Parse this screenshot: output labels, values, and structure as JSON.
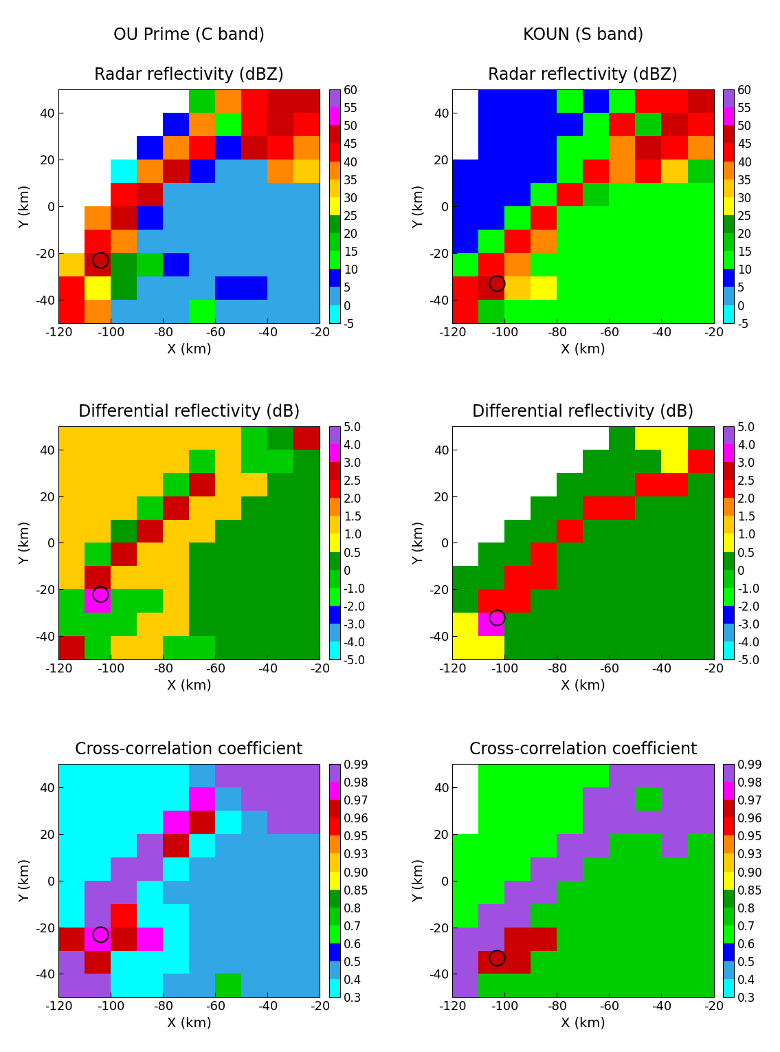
{
  "chart_data": [
    {
      "type": "heatmap",
      "subtitle": "OU Prime (C band)",
      "title": "Radar reflectivity (dBZ)",
      "x_label": "X (km)",
      "y_label": "Y (km)",
      "xlim": [
        -120,
        -20
      ],
      "ylim": [
        -50,
        50
      ],
      "xticks": [
        -120,
        -100,
        -80,
        -60,
        -40,
        -20
      ],
      "yticks": [
        -40,
        -20,
        0,
        20,
        40
      ],
      "x_edges": [
        -120,
        -110,
        -100,
        -90,
        -80,
        -70,
        -60,
        -50,
        -40,
        -30,
        -20
      ],
      "y_edges": [
        50,
        40,
        30,
        20,
        10,
        0,
        -10,
        -20,
        -30,
        -40,
        -50
      ],
      "cells": [
        [
          null,
          null,
          null,
          null,
          null,
          15,
          35,
          40,
          45,
          45
        ],
        [
          null,
          null,
          null,
          null,
          5,
          35,
          10,
          40,
          45,
          40
        ],
        [
          null,
          null,
          null,
          5,
          35,
          40,
          5,
          45,
          40,
          35
        ],
        [
          null,
          null,
          -5,
          35,
          45,
          5,
          2,
          2,
          35,
          30
        ],
        [
          null,
          null,
          40,
          45,
          2,
          2,
          2,
          2,
          2,
          2
        ],
        [
          null,
          35,
          45,
          5,
          2,
          2,
          2,
          2,
          2,
          2
        ],
        [
          null,
          40,
          35,
          2,
          2,
          2,
          2,
          2,
          2,
          2
        ],
        [
          30,
          45,
          20,
          15,
          5,
          2,
          2,
          2,
          2,
          2
        ],
        [
          40,
          25,
          20,
          2,
          2,
          2,
          5,
          5,
          2,
          2
        ],
        [
          40,
          35,
          2,
          2,
          2,
          10,
          2,
          2,
          2,
          2
        ]
      ],
      "colorbar_range": [
        -5,
        60
      ],
      "colorbar_ticks": [
        -5,
        0,
        5,
        10,
        15,
        20,
        25,
        30,
        35,
        40,
        45,
        50,
        55,
        60
      ],
      "colors": [
        "#00ffff",
        "#33a6e6",
        "#0000ff",
        "#00ff00",
        "#00cc00",
        "#009900",
        "#ffff00",
        "#ffcc00",
        "#ff8800",
        "#ff0000",
        "#cc0000",
        "#ff00ff",
        "#a050e0"
      ],
      "circle": {
        "x": -104,
        "y": -23
      }
    },
    {
      "type": "heatmap",
      "subtitle": "KOUN (S band)",
      "title": "Radar reflectivity (dBZ)",
      "x_label": "X (km)",
      "y_label": "Y (km)",
      "xlim": [
        -120,
        -20
      ],
      "ylim": [
        -50,
        50
      ],
      "xticks": [
        -120,
        -100,
        -80,
        -60,
        -40,
        -20
      ],
      "yticks": [
        -40,
        -20,
        0,
        20,
        40
      ],
      "x_edges": [
        -120,
        -110,
        -100,
        -90,
        -80,
        -70,
        -60,
        -50,
        -40,
        -30,
        -20
      ],
      "y_edges": [
        50,
        40,
        30,
        20,
        10,
        0,
        -10,
        -20,
        -30,
        -40,
        -50
      ],
      "cells": [
        [
          null,
          5,
          5,
          5,
          10,
          5,
          10,
          40,
          40,
          45
        ],
        [
          null,
          5,
          5,
          5,
          5,
          10,
          40,
          15,
          45,
          40
        ],
        [
          null,
          5,
          5,
          5,
          10,
          10,
          35,
          45,
          40,
          35
        ],
        [
          5,
          5,
          5,
          5,
          10,
          40,
          35,
          40,
          30,
          15
        ],
        [
          5,
          5,
          5,
          10,
          40,
          15,
          12,
          12,
          12,
          12
        ],
        [
          5,
          5,
          10,
          40,
          12,
          12,
          12,
          12,
          12,
          12
        ],
        [
          5,
          10,
          40,
          35,
          12,
          12,
          12,
          12,
          12,
          12
        ],
        [
          10,
          40,
          35,
          12,
          12,
          12,
          12,
          12,
          12,
          12
        ],
        [
          40,
          45,
          30,
          25,
          12,
          12,
          12,
          12,
          12,
          12
        ],
        [
          40,
          15,
          12,
          12,
          12,
          12,
          12,
          12,
          12,
          12
        ]
      ],
      "colorbar_range": [
        -5,
        60
      ],
      "colorbar_ticks": [
        -5,
        0,
        5,
        10,
        15,
        20,
        25,
        30,
        35,
        40,
        45,
        50,
        55,
        60
      ],
      "colors": [
        "#00ffff",
        "#33a6e6",
        "#0000ff",
        "#00ff00",
        "#00cc00",
        "#009900",
        "#ffff00",
        "#ffcc00",
        "#ff8800",
        "#ff0000",
        "#cc0000",
        "#ff00ff",
        "#a050e0"
      ],
      "circle": {
        "x": -103,
        "y": -33
      }
    },
    {
      "type": "heatmap",
      "title": "Differential reflectivity (dB)",
      "x_label": "X (km)",
      "y_label": "Y (km)",
      "xlim": [
        -120,
        -20
      ],
      "ylim": [
        -50,
        50
      ],
      "xticks": [
        -120,
        -100,
        -80,
        -60,
        -40,
        -20
      ],
      "yticks": [
        -40,
        -20,
        0,
        20,
        40
      ],
      "x_edges": [
        -120,
        -110,
        -100,
        -90,
        -80,
        -70,
        -60,
        -50,
        -40,
        -30,
        -20
      ],
      "y_edges": [
        50,
        40,
        30,
        20,
        10,
        0,
        -10,
        -20,
        -30,
        -40,
        -50
      ],
      "cells": [
        [
          1.2,
          1.2,
          1.2,
          1.2,
          1.2,
          1.2,
          1.2,
          -0.5,
          0.2,
          2.5
        ],
        [
          1.2,
          1.2,
          1.2,
          1.2,
          1.2,
          -0.5,
          1.2,
          -0.5,
          -0.5,
          0.2
        ],
        [
          1.2,
          1.2,
          1.2,
          1.2,
          -0.5,
          2.5,
          1.2,
          1.2,
          0.2,
          0.2
        ],
        [
          1.2,
          1.2,
          1.2,
          -0.5,
          2.5,
          1.2,
          1.2,
          0.2,
          0.2,
          0.2
        ],
        [
          1.2,
          1.2,
          0.2,
          2.5,
          1.2,
          1.2,
          0.2,
          0.2,
          0.2,
          0.2
        ],
        [
          1.2,
          -0.5,
          2.5,
          1.2,
          1.2,
          0.2,
          0.2,
          0.2,
          0.2,
          0.2
        ],
        [
          1.2,
          2.5,
          1.2,
          1.2,
          1.2,
          0.2,
          0.2,
          0.2,
          0.2,
          0.2
        ],
        [
          -0.5,
          3.5,
          -0.5,
          -0.5,
          1.2,
          0.2,
          0.2,
          0.2,
          0.2,
          0.2
        ],
        [
          -0.5,
          -0.5,
          -0.5,
          1.2,
          1.2,
          0.2,
          0.2,
          0.2,
          0.2,
          0.2
        ],
        [
          2.5,
          -0.5,
          1.2,
          1.2,
          -0.5,
          -0.5,
          0.2,
          0.2,
          0.2,
          0.2
        ]
      ],
      "colorbar_range": [
        -5,
        5
      ],
      "colorbar_ticks": [
        {
          "value": -5,
          "label": "-5.0"
        },
        {
          "value": -4,
          "label": "-4.0"
        },
        {
          "value": -3,
          "label": "-3.0"
        },
        {
          "value": -2,
          "label": "-2.0"
        },
        {
          "value": -1,
          "label": "-1.0"
        },
        0,
        0.5,
        {
          "value": 1,
          "label": "1.0"
        },
        1.5,
        {
          "value": 2,
          "label": "2.0"
        },
        2.5,
        {
          "value": 3,
          "label": "3.0"
        },
        {
          "value": 4,
          "label": "4.0"
        },
        {
          "value": 5,
          "label": "5.0"
        }
      ],
      "colors": [
        "#00ffff",
        "#33a6e6",
        "#0000ff",
        "#00ff00",
        "#00cc00",
        "#009900",
        "#ffff00",
        "#ffcc00",
        "#ff8800",
        "#ff0000",
        "#cc0000",
        "#ff00ff",
        "#a050e0"
      ],
      "circle": {
        "x": -104,
        "y": -22
      }
    },
    {
      "type": "heatmap",
      "title": "Differential reflectivity (dB)",
      "x_label": "X (km)",
      "y_label": "Y (km)",
      "xlim": [
        -120,
        -20
      ],
      "ylim": [
        -50,
        50
      ],
      "xticks": [
        -120,
        -100,
        -80,
        -60,
        -40,
        -20
      ],
      "yticks": [
        -40,
        -20,
        0,
        20,
        40
      ],
      "x_edges": [
        -120,
        -110,
        -100,
        -90,
        -80,
        -70,
        -60,
        -50,
        -40,
        -30,
        -20
      ],
      "y_edges": [
        50,
        40,
        30,
        20,
        10,
        0,
        -10,
        -20,
        -30,
        -40,
        -50
      ],
      "cells": [
        [
          null,
          null,
          null,
          null,
          null,
          null,
          0.3,
          0.7,
          0.7,
          0.3
        ],
        [
          null,
          null,
          null,
          null,
          null,
          0.3,
          0.3,
          0.3,
          0.7,
          2.2
        ],
        [
          null,
          null,
          null,
          null,
          0.3,
          0.3,
          0.3,
          2.2,
          2.2,
          0.3
        ],
        [
          null,
          null,
          null,
          0.3,
          0.3,
          2.2,
          2.2,
          0.3,
          0.3,
          0.3
        ],
        [
          null,
          null,
          0.3,
          0.3,
          2.2,
          0.3,
          0.3,
          0.3,
          0.3,
          0.3
        ],
        [
          null,
          0.3,
          0.3,
          2.2,
          0.3,
          0.3,
          0.3,
          0.3,
          0.3,
          0.3
        ],
        [
          0.3,
          0.3,
          2.2,
          2.2,
          0.3,
          0.3,
          0.3,
          0.3,
          0.3,
          0.3
        ],
        [
          0.3,
          2.2,
          2.2,
          0.3,
          0.3,
          0.3,
          0.3,
          0.3,
          0.3,
          0.3
        ],
        [
          0.7,
          3.5,
          0.3,
          0.3,
          0.3,
          0.3,
          0.3,
          0.3,
          0.3,
          0.3
        ],
        [
          0.7,
          0.7,
          0.3,
          0.3,
          0.3,
          0.3,
          0.3,
          0.3,
          0.3,
          0.3
        ]
      ],
      "colorbar_range": [
        -5,
        5
      ],
      "colorbar_ticks": [
        {
          "value": -5,
          "label": "-5.0"
        },
        {
          "value": -4,
          "label": "-4.0"
        },
        {
          "value": -3,
          "label": "-3.0"
        },
        {
          "value": -2,
          "label": "-2.0"
        },
        {
          "value": -1,
          "label": "-1.0"
        },
        0,
        0.5,
        {
          "value": 1,
          "label": "1.0"
        },
        1.5,
        {
          "value": 2,
          "label": "2.0"
        },
        2.5,
        {
          "value": 3,
          "label": "3.0"
        },
        {
          "value": 4,
          "label": "4.0"
        },
        {
          "value": 5,
          "label": "5.0"
        }
      ],
      "colors": [
        "#00ffff",
        "#33a6e6",
        "#0000ff",
        "#00ff00",
        "#00cc00",
        "#009900",
        "#ffff00",
        "#ffcc00",
        "#ff8800",
        "#ff0000",
        "#cc0000",
        "#ff00ff",
        "#a050e0"
      ],
      "circle": {
        "x": -103,
        "y": -32
      }
    },
    {
      "type": "heatmap",
      "title": "Cross-correlation coefficient",
      "x_label": "X (km)",
      "y_label": "Y (km)",
      "xlim": [
        -120,
        -20
      ],
      "ylim": [
        -50,
        50
      ],
      "xticks": [
        -120,
        -100,
        -80,
        -60,
        -40,
        -20
      ],
      "yticks": [
        -40,
        -20,
        0,
        20,
        40
      ],
      "x_edges": [
        -120,
        -110,
        -100,
        -90,
        -80,
        -70,
        -60,
        -50,
        -40,
        -30,
        -20
      ],
      "y_edges": [
        50,
        40,
        30,
        20,
        10,
        0,
        -10,
        -20,
        -30,
        -40,
        -50
      ],
      "cells": [
        [
          0.35,
          0.35,
          0.35,
          0.35,
          0.35,
          0.45,
          0.985,
          0.985,
          0.985,
          0.985
        ],
        [
          0.35,
          0.35,
          0.35,
          0.35,
          0.35,
          0.97,
          0.45,
          0.985,
          0.985,
          0.985
        ],
        [
          0.35,
          0.35,
          0.35,
          0.35,
          0.97,
          0.96,
          0.35,
          0.45,
          0.985,
          0.985
        ],
        [
          0.35,
          0.35,
          0.35,
          0.985,
          0.96,
          0.35,
          0.45,
          0.45,
          0.45,
          0.45
        ],
        [
          0.35,
          0.35,
          0.985,
          0.985,
          0.35,
          0.45,
          0.45,
          0.45,
          0.45,
          0.45
        ],
        [
          0.35,
          0.985,
          0.985,
          0.35,
          0.45,
          0.45,
          0.45,
          0.45,
          0.45,
          0.45
        ],
        [
          0.35,
          0.985,
          0.95,
          0.35,
          0.35,
          0.45,
          0.45,
          0.45,
          0.45,
          0.45
        ],
        [
          0.96,
          0.97,
          0.96,
          0.97,
          0.35,
          0.45,
          0.45,
          0.45,
          0.45,
          0.45
        ],
        [
          0.985,
          0.96,
          0.35,
          0.35,
          0.35,
          0.45,
          0.45,
          0.45,
          0.45,
          0.45
        ],
        [
          0.985,
          0.985,
          0.35,
          0.35,
          0.45,
          0.45,
          0.7,
          0.45,
          0.45,
          0.45
        ]
      ],
      "colorbar_range": [
        0.3,
        0.99
      ],
      "colorbar_ticks": [
        0.3,
        0.4,
        0.5,
        0.6,
        0.7,
        0.8,
        0.85,
        {
          "value": 0.9,
          "label": "0.90"
        },
        0.93,
        0.95,
        0.96,
        0.97,
        0.98,
        0.99
      ],
      "colors": [
        "#00ffff",
        "#33a6e6",
        "#0000ff",
        "#00ff00",
        "#00cc00",
        "#009900",
        "#ffff00",
        "#ffcc00",
        "#ff8800",
        "#ff0000",
        "#cc0000",
        "#ff00ff",
        "#a050e0"
      ],
      "circle": {
        "x": -104,
        "y": -23
      }
    },
    {
      "type": "heatmap",
      "title": "Cross-correlation coefficient",
      "x_label": "X (km)",
      "y_label": "Y (km)",
      "xlim": [
        -120,
        -20
      ],
      "ylim": [
        -50,
        50
      ],
      "xticks": [
        -120,
        -100,
        -80,
        -60,
        -40,
        -20
      ],
      "yticks": [
        -40,
        -20,
        0,
        20,
        40
      ],
      "x_edges": [
        -120,
        -110,
        -100,
        -90,
        -80,
        -70,
        -60,
        -50,
        -40,
        -30,
        -20
      ],
      "y_edges": [
        50,
        40,
        30,
        20,
        10,
        0,
        -10,
        -20,
        -30,
        -40,
        -50
      ],
      "cells": [
        [
          null,
          0.6,
          0.6,
          0.6,
          0.6,
          0.6,
          0.985,
          0.985,
          0.985,
          0.985
        ],
        [
          null,
          0.6,
          0.6,
          0.6,
          0.6,
          0.985,
          0.985,
          0.75,
          0.985,
          0.985
        ],
        [
          null,
          0.6,
          0.6,
          0.6,
          0.6,
          0.985,
          0.985,
          0.985,
          0.985,
          0.985
        ],
        [
          0.6,
          0.6,
          0.6,
          0.6,
          0.985,
          0.985,
          0.75,
          0.75,
          0.985,
          0.75
        ],
        [
          0.6,
          0.6,
          0.6,
          0.985,
          0.985,
          0.75,
          0.75,
          0.75,
          0.75,
          0.75
        ],
        [
          0.6,
          0.6,
          0.985,
          0.985,
          0.75,
          0.75,
          0.75,
          0.75,
          0.75,
          0.75
        ],
        [
          0.6,
          0.985,
          0.985,
          0.75,
          0.75,
          0.75,
          0.75,
          0.75,
          0.75,
          0.75
        ],
        [
          0.985,
          0.985,
          0.96,
          0.96,
          0.75,
          0.75,
          0.75,
          0.75,
          0.75,
          0.75
        ],
        [
          0.985,
          0.96,
          0.96,
          0.75,
          0.75,
          0.75,
          0.75,
          0.75,
          0.75,
          0.75
        ],
        [
          0.985,
          0.75,
          0.75,
          0.75,
          0.75,
          0.75,
          0.75,
          0.75,
          0.75,
          0.75
        ]
      ],
      "colorbar_range": [
        0.3,
        0.99
      ],
      "colorbar_ticks": [
        0.3,
        0.4,
        0.5,
        0.6,
        0.7,
        0.8,
        0.85,
        {
          "value": 0.9,
          "label": "0.90"
        },
        0.93,
        0.95,
        0.96,
        0.97,
        0.98,
        0.99
      ],
      "colors": [
        "#00ffff",
        "#33a6e6",
        "#0000ff",
        "#00ff00",
        "#00cc00",
        "#009900",
        "#ffff00",
        "#ffcc00",
        "#ff8800",
        "#ff0000",
        "#cc0000",
        "#ff00ff",
        "#a050e0"
      ],
      "circle": {
        "x": -103,
        "y": -33
      }
    }
  ]
}
